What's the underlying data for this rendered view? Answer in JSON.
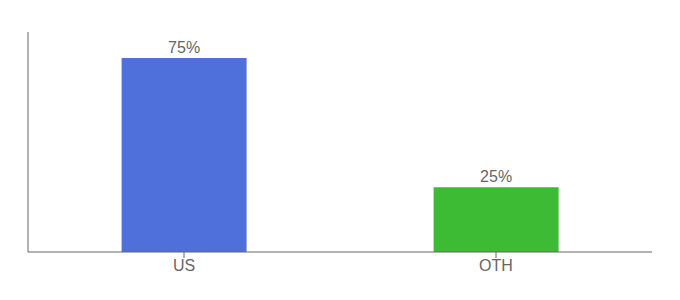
{
  "chart_data": {
    "type": "bar",
    "categories": [
      "US",
      "OTH"
    ],
    "values": [
      75,
      25
    ],
    "value_labels": [
      "75%",
      "25%"
    ],
    "colors": [
      "#4f6fdb",
      "#3dbb35"
    ],
    "ylim": [
      0,
      85
    ],
    "data_labels": true,
    "tick_labels": "x",
    "grid": false
  }
}
